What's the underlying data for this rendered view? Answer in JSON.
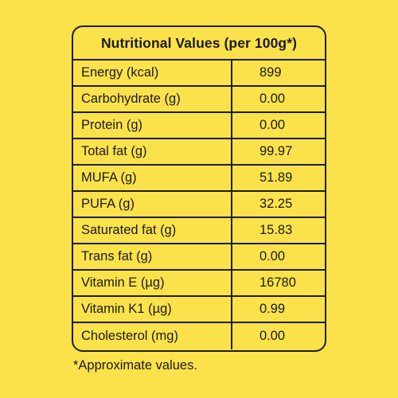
{
  "table": {
    "title": "Nutritional Values (per 100g*)",
    "rows": [
      {
        "name": "Energy (kcal)",
        "value": "899"
      },
      {
        "name": "Carbohydrate (g)",
        "value": "0.00"
      },
      {
        "name": "Protein (g)",
        "value": "0.00"
      },
      {
        "name": "Total fat (g)",
        "value": "99.97"
      },
      {
        "name": "MUFA (g)",
        "value": "51.89"
      },
      {
        "name": "PUFA (g)",
        "value": "32.25"
      },
      {
        "name": "Saturated fat (g)",
        "value": "15.83"
      },
      {
        "name": "Trans fat (g)",
        "value": "0.00"
      },
      {
        "name": "Vitamin E (µg)",
        "value": "16780"
      },
      {
        "name": "Vitamin K1 (µg)",
        "value": "0.99"
      },
      {
        "name": "Cholesterol (mg)",
        "value": "0.00"
      }
    ]
  },
  "footnote": "*Approximate values.",
  "colors": {
    "background": "#fbe24a",
    "border": "#1e1e1e",
    "text": "#1a1a1a"
  }
}
